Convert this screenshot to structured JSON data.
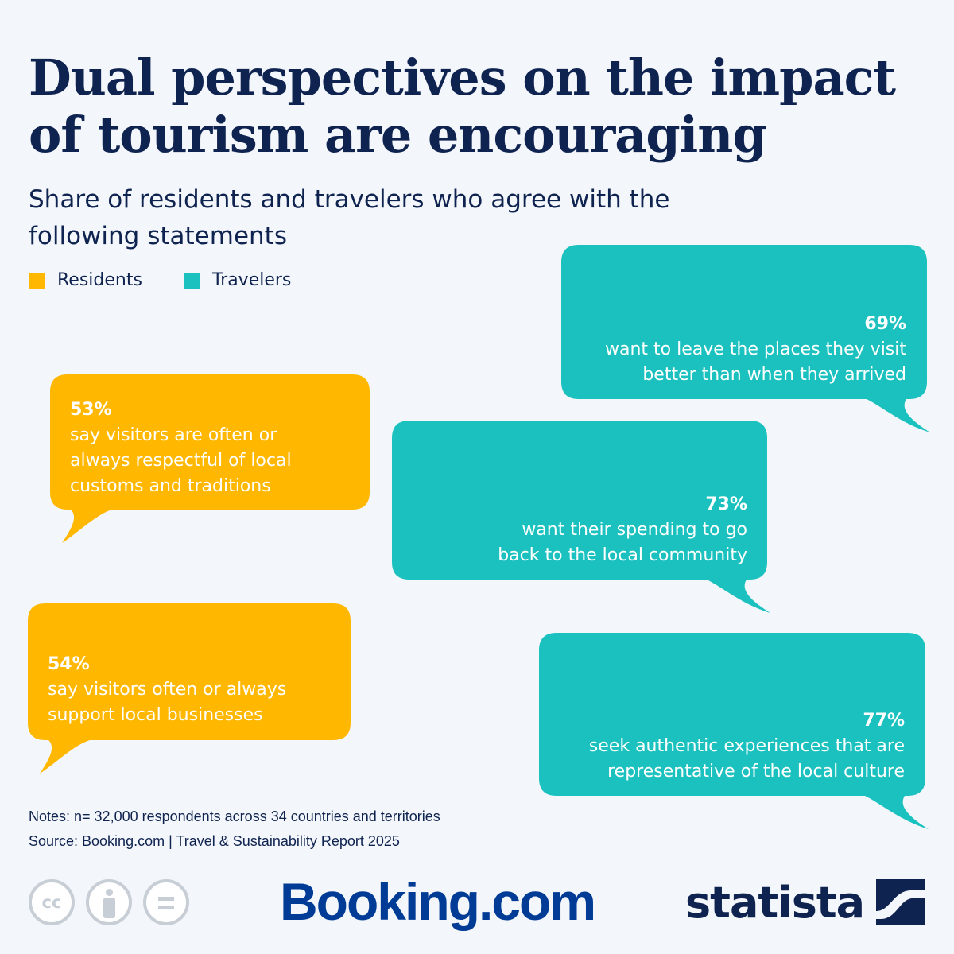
{
  "header": {
    "title": "Dual perspectives on the impact of tourism are encouraging",
    "subtitle": "Share of residents and travelers who agree with the following statements"
  },
  "legend": [
    {
      "label": "Residents",
      "color": "#ffb700"
    },
    {
      "label": "Travelers",
      "color": "#1bc1bf"
    }
  ],
  "chart_data": {
    "type": "table",
    "series": [
      {
        "name": "Residents",
        "color": "#ffb700",
        "items": [
          {
            "value": 53,
            "value_label": "53%",
            "text": [
              "say visitors are often or",
              "always respectful of local",
              "customs and traditions"
            ]
          },
          {
            "value": 54,
            "value_label": "54%",
            "text": [
              "say visitors often or always",
              "support local businesses"
            ]
          }
        ]
      },
      {
        "name": "Travelers",
        "color": "#1bc1bf",
        "items": [
          {
            "value": 69,
            "value_label": "69%",
            "text": [
              "want to leave the places they visit",
              "better than when they arrived"
            ]
          },
          {
            "value": 73,
            "value_label": "73%",
            "text": [
              "want their spending to go",
              "back to the local community"
            ]
          },
          {
            "value": 77,
            "value_label": "77%",
            "text": [
              "seek authentic experiences that are",
              "representative of the local culture"
            ]
          }
        ]
      }
    ]
  },
  "footer": {
    "notes": "Notes: n= 32,000 respondents across 34 countries and territories",
    "source": "Source: Booking.com | Travel & Sustainability Report 2025",
    "cc_icons": [
      "cc-icon",
      "attribution-icon",
      "no-derivatives-icon"
    ],
    "cc_label": "cc",
    "booking_logo": "Booking.com",
    "statista_logo": "statista"
  }
}
